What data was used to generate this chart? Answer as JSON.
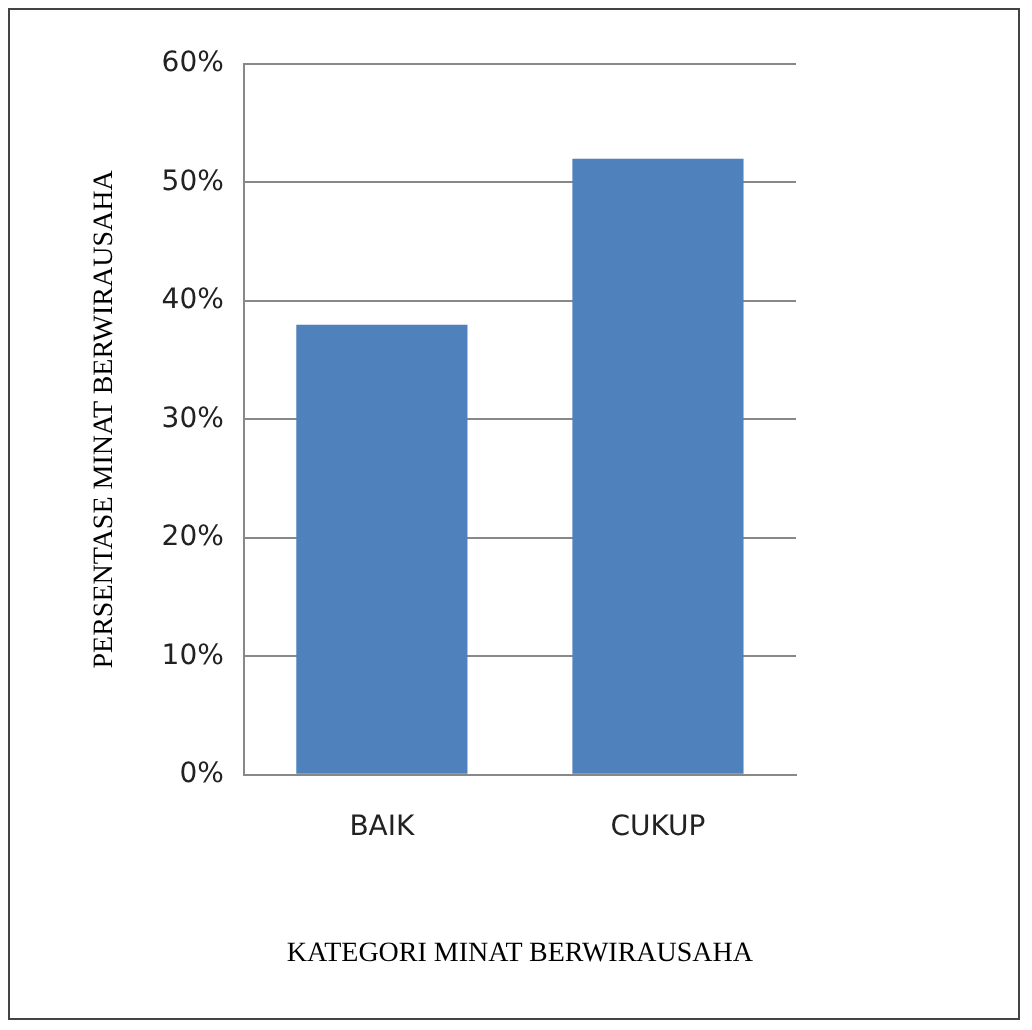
{
  "chart_data": {
    "type": "bar",
    "categories": [
      "BAIK",
      "CUKUP"
    ],
    "values": [
      38,
      52
    ],
    "color": "#4f81bd",
    "xlabel": "KATEGORI MINAT BERWIRAUSAHA",
    "ylabel": "PERSENTASE MINAT BERWIRAUSAHA",
    "ylim": [
      0,
      60
    ],
    "yticks": [
      {
        "value": 0,
        "label": "0%"
      },
      {
        "value": 10,
        "label": "10%"
      },
      {
        "value": 20,
        "label": "20%"
      },
      {
        "value": 30,
        "label": "30%"
      },
      {
        "value": 40,
        "label": "40%"
      },
      {
        "value": 50,
        "label": "50%"
      },
      {
        "value": 60,
        "label": "60%"
      }
    ],
    "grid": "y",
    "legend": false
  }
}
